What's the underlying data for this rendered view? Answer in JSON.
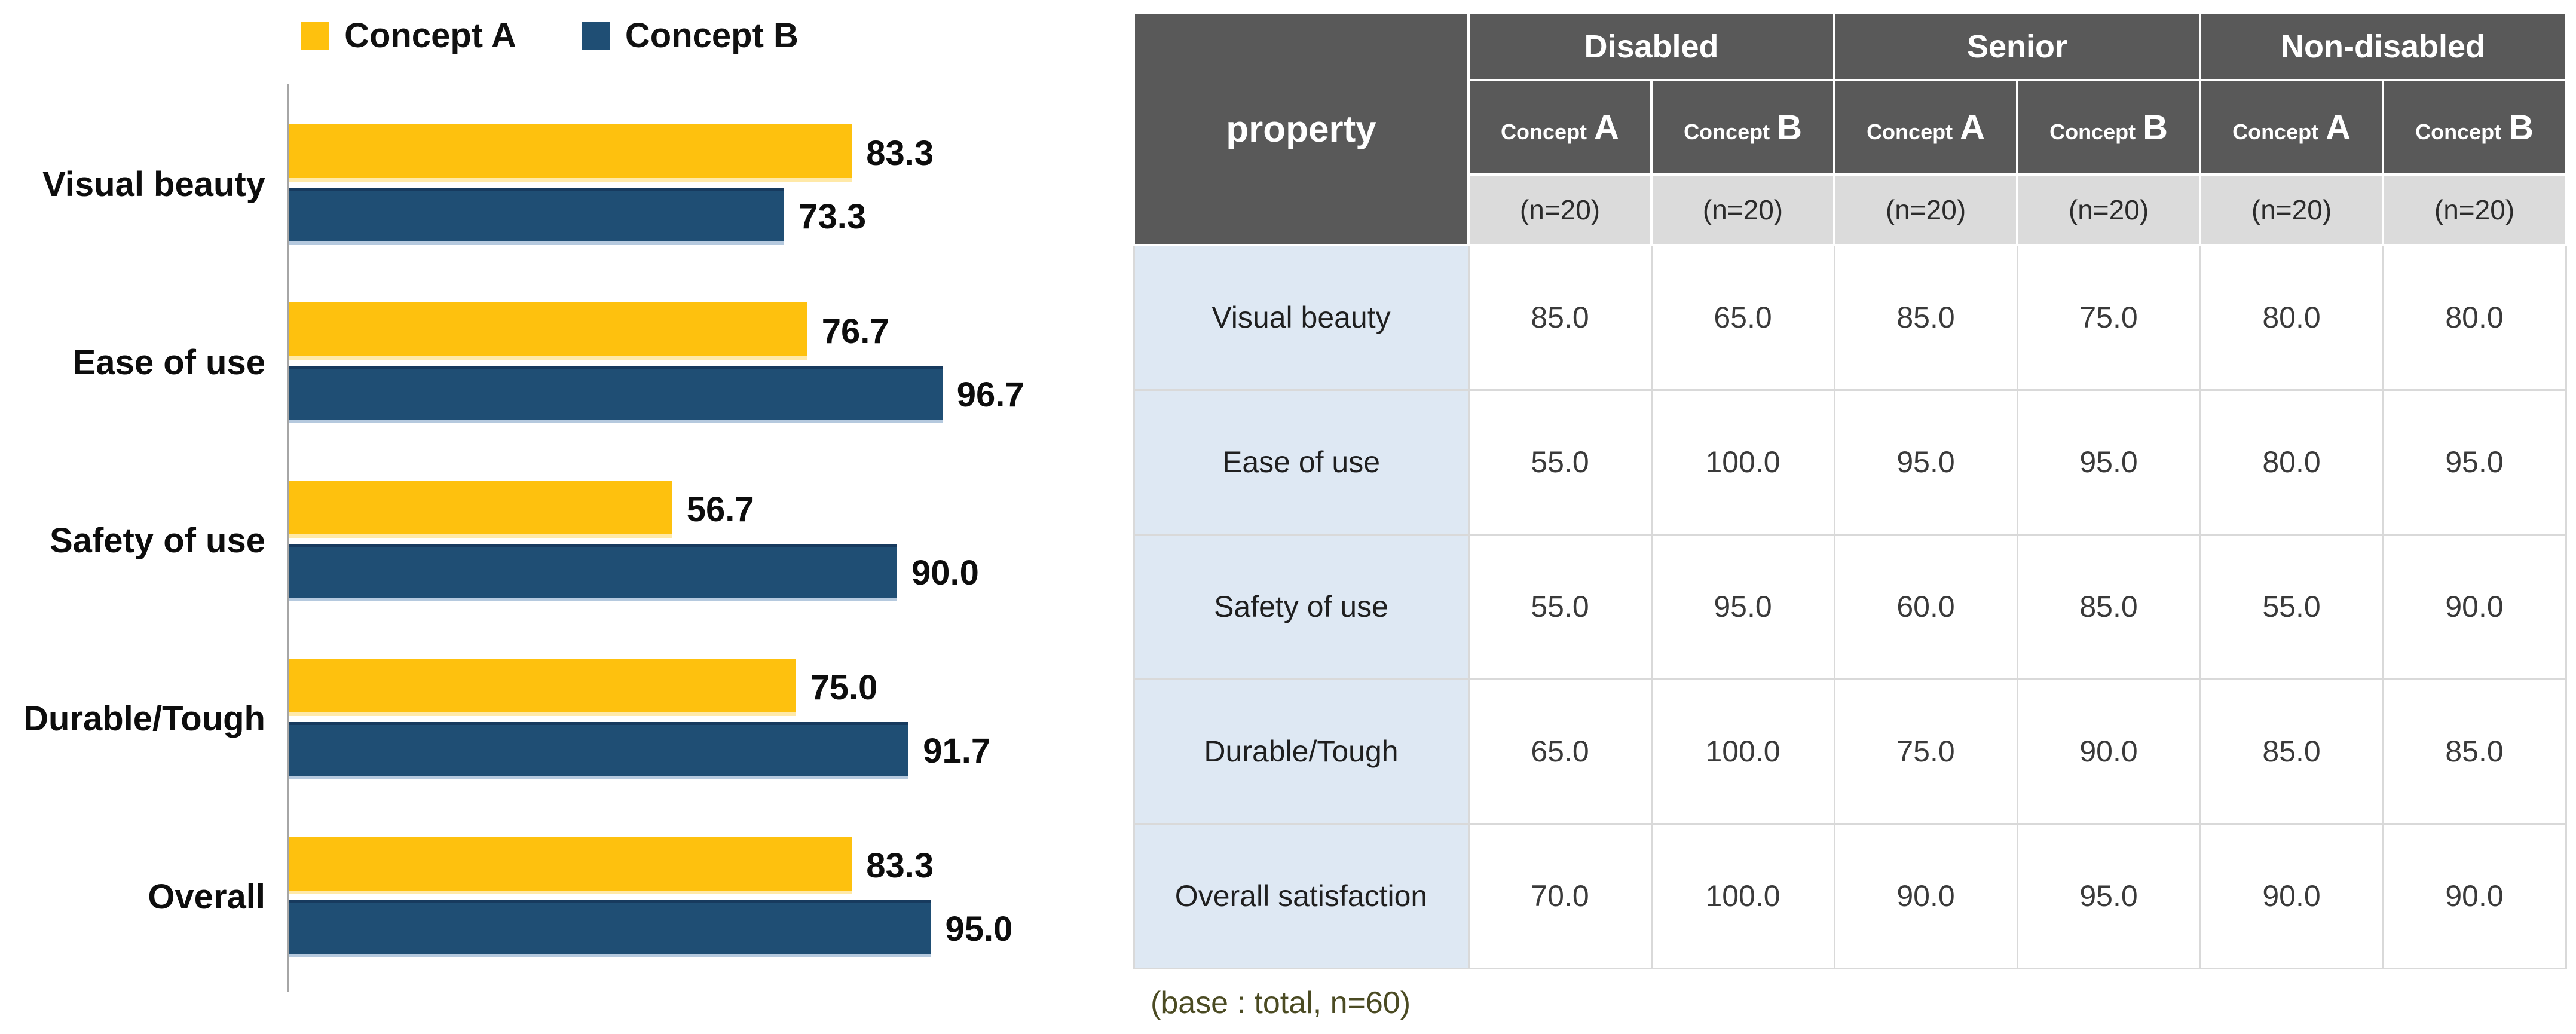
{
  "chart_data": {
    "type": "bar",
    "orientation": "horizontal",
    "title": "",
    "categories": [
      "Visual beauty",
      "Ease of use",
      "Safety of use",
      "Durable/Tough",
      "Overall"
    ],
    "series": [
      {
        "name": "Concept A",
        "color": "#FEC10E",
        "values": [
          83.3,
          76.7,
          56.7,
          75.0,
          83.3
        ]
      },
      {
        "name": "Concept B",
        "color": "#1F4E74",
        "values": [
          73.3,
          96.7,
          90.0,
          91.7,
          95.0
        ]
      }
    ],
    "xlim": [
      0,
      100
    ],
    "value_labels": true,
    "legend_position": "top",
    "grid": false
  },
  "table": {
    "corner_label": "property",
    "groups": [
      {
        "label": "Disabled"
      },
      {
        "label": "Senior"
      },
      {
        "label": "Non-disabled"
      }
    ],
    "column_headers": [
      {
        "prefix": "Concept",
        "letter": "A"
      },
      {
        "prefix": "Concept",
        "letter": "B"
      },
      {
        "prefix": "Concept",
        "letter": "A"
      },
      {
        "prefix": "Concept",
        "letter": "B"
      },
      {
        "prefix": "Concept",
        "letter": "A"
      },
      {
        "prefix": "Concept",
        "letter": "B"
      }
    ],
    "n_labels": [
      "(n=20)",
      "(n=20)",
      "(n=20)",
      "(n=20)",
      "(n=20)",
      "(n=20)"
    ],
    "rows": [
      {
        "label": "Visual beauty",
        "values": [
          "85.0",
          "65.0",
          "85.0",
          "75.0",
          "80.0",
          "80.0"
        ]
      },
      {
        "label": "Ease of use",
        "values": [
          "55.0",
          "100.0",
          "95.0",
          "95.0",
          "80.0",
          "95.0"
        ]
      },
      {
        "label": "Safety of use",
        "values": [
          "55.0",
          "95.0",
          "60.0",
          "85.0",
          "55.0",
          "90.0"
        ]
      },
      {
        "label": "Durable/Tough",
        "values": [
          "65.0",
          "100.0",
          "75.0",
          "90.0",
          "85.0",
          "85.0"
        ]
      },
      {
        "label": "Overall satisfaction",
        "values": [
          "70.0",
          "100.0",
          "90.0",
          "95.0",
          "90.0",
          "90.0"
        ]
      }
    ],
    "footnote": "(base : total, n=60)"
  },
  "colors": {
    "concept_a": "#FEC10E",
    "concept_b": "#1F4E74",
    "table_header_bg": "#595959",
    "table_subrow_bg": "#DBDBDB",
    "row_label_bg": "#DEE8F3",
    "grid_line": "#D9D9D9",
    "outer_border": "#C9C9C9",
    "axis_line": "#A6A6A6",
    "footnote_text": "#4B4B23"
  }
}
